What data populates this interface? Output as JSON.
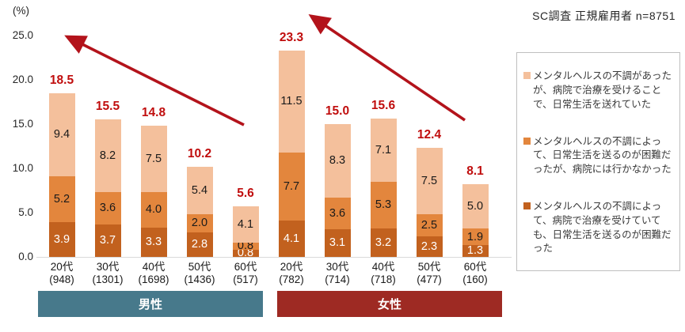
{
  "title": "SC調査 正規雇用者 n=8751",
  "axis": {
    "unit_label": "(%)"
  },
  "chart_data": {
    "type": "bar",
    "subtype": "stacked",
    "unit": "%",
    "ylim": [
      0,
      25
    ],
    "yticks": [
      25,
      20,
      15,
      10,
      5,
      0
    ],
    "grid": false,
    "legend_position": "right",
    "segment_order_bottom_to_top": [
      "メンタルヘルスの不調によって、病院で治療を受けていても、日常生活を送るのが困難だった",
      "メンタルヘルスの不調によって、日常生活を送るのが困難だったが、病院には行かなかった",
      "メンタルヘルスの不調があったが、病院で治療を受けることで、日常生活を送れていた"
    ],
    "segment_colors": [
      "#C2611E",
      "#E3863D",
      "#F4C09C"
    ],
    "segment_label_colors": [
      "#FFFFFF",
      "#1A1A1A",
      "#1A1A1A"
    ],
    "groups": [
      {
        "label": "男性",
        "box_color": "#47798B",
        "bars": [
          {
            "category": "20代",
            "n_label": "(948)",
            "total": 18.5,
            "values": [
              3.9,
              5.2,
              9.4
            ]
          },
          {
            "category": "30代",
            "n_label": "(1301)",
            "total": 15.5,
            "values": [
              3.7,
              3.6,
              8.2
            ]
          },
          {
            "category": "40代",
            "n_label": "(1698)",
            "total": 14.8,
            "values": [
              3.3,
              4.0,
              7.5
            ]
          },
          {
            "category": "50代",
            "n_label": "(1436)",
            "total": 10.2,
            "values": [
              2.8,
              2.0,
              5.4
            ]
          },
          {
            "category": "60代",
            "n_label": "(517)",
            "total": 5.6,
            "values": [
              0.8,
              0.8,
              4.1
            ]
          }
        ]
      },
      {
        "label": "女性",
        "box_color": "#9E2A23",
        "bars": [
          {
            "category": "20代",
            "n_label": "(782)",
            "total": 23.3,
            "values": [
              4.1,
              7.7,
              11.5
            ]
          },
          {
            "category": "30代",
            "n_label": "(714)",
            "total": 15.0,
            "values": [
              3.1,
              3.6,
              8.3
            ]
          },
          {
            "category": "40代",
            "n_label": "(718)",
            "total": 15.6,
            "values": [
              3.2,
              5.3,
              7.1
            ]
          },
          {
            "category": "50代",
            "n_label": "(477)",
            "total": 12.4,
            "values": [
              2.3,
              2.5,
              7.5
            ]
          },
          {
            "category": "60代",
            "n_label": "(160)",
            "total": 8.1,
            "values": [
              1.3,
              1.9,
              5.0
            ]
          }
        ]
      }
    ],
    "legend": [
      {
        "color": "#F4C09C",
        "label": "メンタルヘルスの不調があったが、病院で治療を受けることで、日常生活を送れていた"
      },
      {
        "color": "#E3863D",
        "label": "メンタルヘルスの不調によって、日常生活を送るのが困難だったが、病院には行かなかった"
      },
      {
        "color": "#C2611E",
        "label": "メンタルヘルスの不調によって、病院で治療を受けていても、日常生活を送るのが困難だった"
      }
    ],
    "annotations": {
      "trend_arrows": "両群とも若い世代ほど高い（右下から左上への矢印）",
      "arrow_color": "#B3131B",
      "total_label_color": "#C00D0D"
    }
  }
}
